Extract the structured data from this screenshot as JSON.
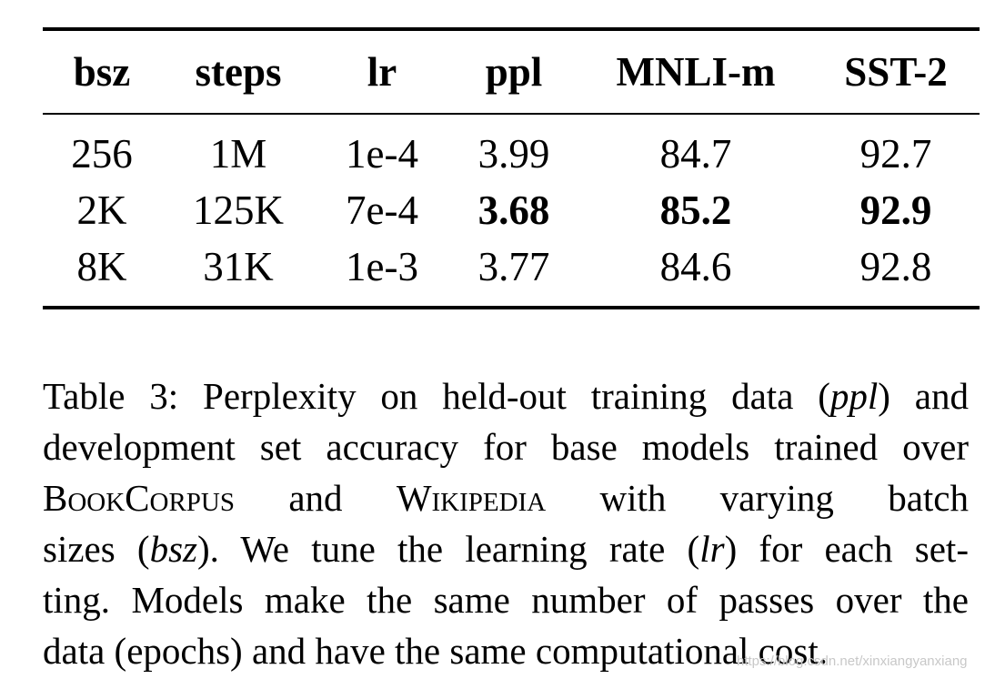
{
  "table": {
    "header": [
      "bsz",
      "steps",
      "lr",
      "ppl",
      "MNLI-m",
      "SST-2"
    ],
    "rows": [
      [
        "256",
        "1M",
        "1e-4",
        "3.99",
        "84.7",
        "92.7"
      ],
      [
        "2K",
        "125K",
        "7e-4",
        "3.68",
        "85.2",
        "92.9"
      ],
      [
        "8K",
        "31K",
        "1e-3",
        "3.77",
        "84.6",
        "92.8"
      ]
    ]
  },
  "caption": {
    "lines": [
      [
        "Table 3: Perplexity on held-out training data (",
        "ppl",
        ") and"
      ],
      [
        "development set accuracy for base models trained over"
      ],
      [
        "BookCorpus",
        " and ",
        "Wikipedia",
        " with varying batch"
      ],
      [
        "sizes (",
        "bsz",
        ").  We tune the learning rate (",
        "lr",
        ") for each set-"
      ],
      [
        "ting. Models make the same number of passes over the"
      ],
      [
        "data (epochs) and have the same computational cost."
      ]
    ]
  },
  "watermark": "https://blog.csdn.net/xinxiangyanxiang"
}
